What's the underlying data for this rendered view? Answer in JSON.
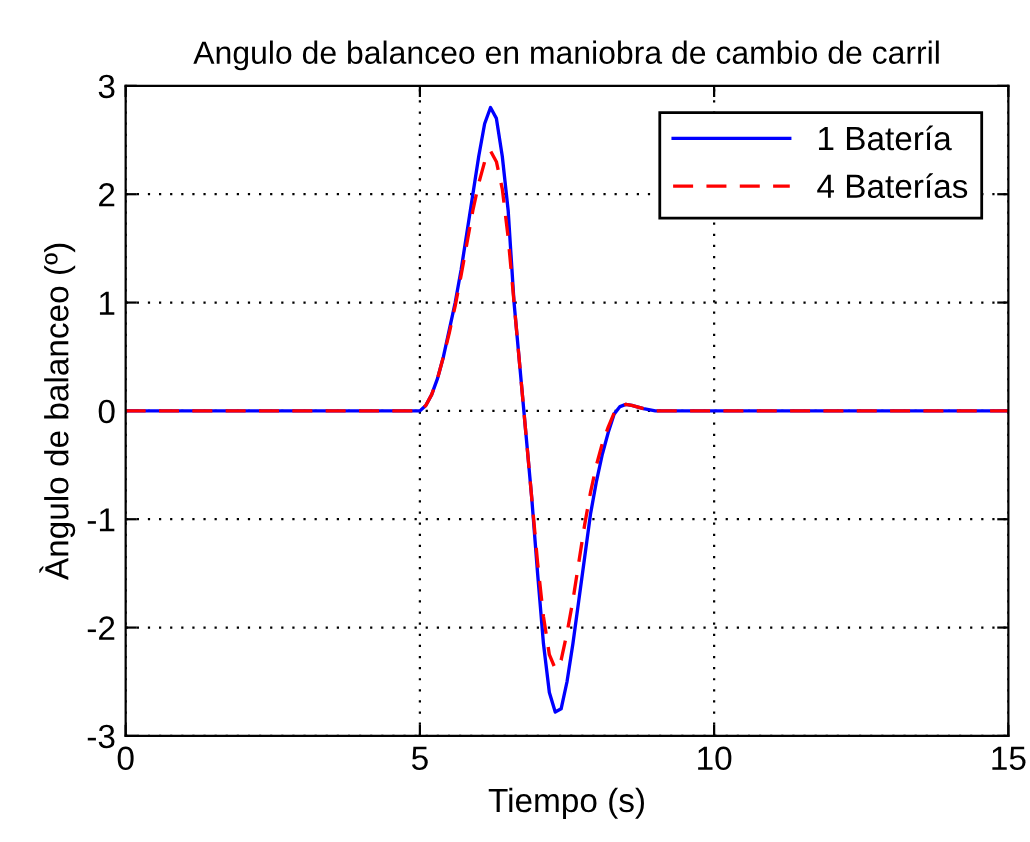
{
  "chart_data": {
    "type": "line",
    "title": "Angulo de balanceo en maniobra de cambio de carril",
    "xlabel": "Tiempo (s)",
    "ylabel": "Àngulo de balanceo (º)",
    "xlim": [
      0,
      15
    ],
    "xticks": [
      0,
      5,
      10,
      15
    ],
    "ylim": [
      -3,
      3
    ],
    "yticks": [
      -3,
      -2,
      -1,
      0,
      1,
      2,
      3
    ],
    "grid": true,
    "legend": "top right",
    "series": [
      {
        "name": "1 Batería",
        "color": "#0000ff",
        "line_style": "solid",
        "x": [
          0,
          5.0,
          5.1,
          5.2,
          5.3,
          5.4,
          5.5,
          5.6,
          5.7,
          5.8,
          5.9,
          6.0,
          6.1,
          6.2,
          6.3,
          6.4,
          6.5,
          6.6,
          6.7,
          6.8,
          6.9,
          7.0,
          7.1,
          7.2,
          7.3,
          7.4,
          7.5,
          7.6,
          7.7,
          7.8,
          7.9,
          8.0,
          8.1,
          8.2,
          8.3,
          8.4,
          8.5,
          8.6,
          8.8,
          9.0,
          15
        ],
        "values": [
          0,
          0,
          0.05,
          0.15,
          0.3,
          0.5,
          0.75,
          1.0,
          1.3,
          1.65,
          2.0,
          2.35,
          2.65,
          2.8,
          2.7,
          2.35,
          1.85,
          1.0,
          0.4,
          -0.2,
          -0.8,
          -1.5,
          -2.15,
          -2.6,
          -2.78,
          -2.75,
          -2.5,
          -2.15,
          -1.75,
          -1.35,
          -0.95,
          -0.65,
          -0.4,
          -0.2,
          -0.03,
          0.04,
          0.06,
          0.05,
          0.02,
          0,
          0
        ]
      },
      {
        "name": "4 Baterías",
        "color": "#ff0000",
        "line_style": "dashed",
        "x": [
          0,
          5.0,
          5.1,
          5.2,
          5.3,
          5.4,
          5.5,
          5.6,
          5.7,
          5.8,
          5.9,
          6.0,
          6.1,
          6.2,
          6.3,
          6.4,
          6.5,
          6.6,
          6.7,
          6.8,
          6.9,
          7.0,
          7.1,
          7.2,
          7.3,
          7.4,
          7.5,
          7.6,
          7.7,
          7.8,
          7.9,
          8.0,
          8.1,
          8.2,
          8.3,
          8.4,
          8.5,
          8.6,
          8.8,
          9.0,
          15
        ],
        "values": [
          0,
          0,
          0.05,
          0.15,
          0.3,
          0.5,
          0.72,
          0.97,
          1.25,
          1.55,
          1.85,
          2.1,
          2.3,
          2.4,
          2.3,
          2.05,
          1.6,
          1.0,
          0.4,
          -0.2,
          -0.8,
          -1.4,
          -1.9,
          -2.25,
          -2.38,
          -2.3,
          -2.05,
          -1.75,
          -1.4,
          -1.05,
          -0.75,
          -0.5,
          -0.3,
          -0.15,
          -0.02,
          0.04,
          0.06,
          0.05,
          0.02,
          0,
          0
        ]
      }
    ]
  }
}
